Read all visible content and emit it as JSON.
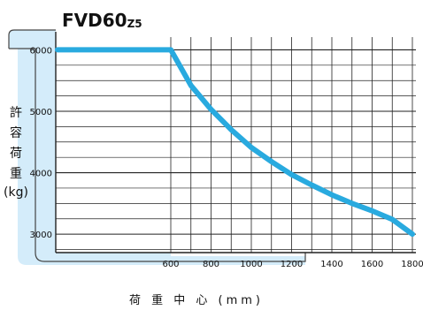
{
  "chart_data": {
    "type": "line",
    "title": "FVD60",
    "title_suffix": "Z5",
    "xlabel": "荷 重 中 心 (mm)",
    "ylabel_chars": [
      "許",
      "容",
      "荷",
      "重",
      "(kg)"
    ],
    "x_ticks": [
      "600",
      "800",
      "1000",
      "1200",
      "1400",
      "1600",
      "1800"
    ],
    "y_ticks": [
      "3000",
      "4000",
      "5000",
      "6000"
    ],
    "xlim": [
      0,
      1800
    ],
    "ylim": [
      2700,
      6150
    ],
    "grid": true,
    "series": [
      {
        "color": "#29aadf",
        "x": [
          0,
          600,
          700,
          800,
          900,
          1000,
          1100,
          1200,
          1300,
          1400,
          1500,
          1600,
          1700,
          1800
        ],
        "y": [
          6000,
          6000,
          5420,
          5030,
          4700,
          4410,
          4180,
          3970,
          3800,
          3640,
          3500,
          3380,
          3240,
          3000
        ]
      }
    ],
    "colors": {
      "curve": "#29aadf",
      "frame_fill": "#d4ecfa",
      "frame_stroke": "#444444",
      "grid": "#222222"
    }
  }
}
